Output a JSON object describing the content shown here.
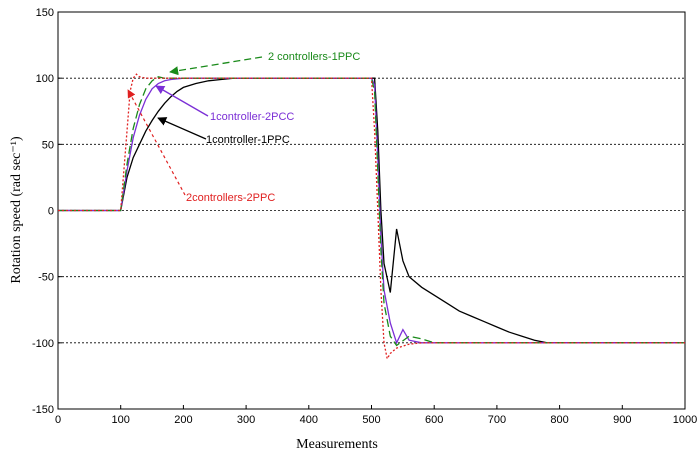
{
  "chart_data": {
    "type": "line",
    "title": "",
    "xlabel": "Measurements",
    "ylabel": "Rotation speed (rad sec⁻¹)",
    "xlim": [
      0,
      1000
    ],
    "ylim": [
      -150,
      150
    ],
    "xticks": [
      0,
      100,
      200,
      300,
      400,
      500,
      600,
      700,
      800,
      900,
      1000
    ],
    "yticks": [
      -150,
      -100,
      -50,
      0,
      50,
      100,
      150
    ],
    "grid": "horizontal dotted",
    "legend": "none (inline arrow annotations)",
    "series": [
      {
        "name": "1controller-1PPC",
        "color": "#000000",
        "style": "solid",
        "points": [
          [
            0,
            0
          ],
          [
            100,
            0
          ],
          [
            110,
            25
          ],
          [
            120,
            40
          ],
          [
            130,
            50
          ],
          [
            140,
            60
          ],
          [
            150,
            68
          ],
          [
            160,
            75
          ],
          [
            170,
            81
          ],
          [
            180,
            86
          ],
          [
            190,
            90
          ],
          [
            200,
            93
          ],
          [
            220,
            96
          ],
          [
            240,
            98
          ],
          [
            260,
            99
          ],
          [
            280,
            100
          ],
          [
            300,
            100
          ],
          [
            400,
            100
          ],
          [
            500,
            100
          ],
          [
            505,
            100
          ],
          [
            510,
            60
          ],
          [
            515,
            0
          ],
          [
            520,
            -40
          ],
          [
            530,
            -62
          ],
          [
            540,
            -14
          ],
          [
            550,
            -38
          ],
          [
            560,
            -50
          ],
          [
            580,
            -58
          ],
          [
            600,
            -64
          ],
          [
            620,
            -70
          ],
          [
            640,
            -76
          ],
          [
            660,
            -80
          ],
          [
            680,
            -84
          ],
          [
            700,
            -88
          ],
          [
            720,
            -92
          ],
          [
            740,
            -95
          ],
          [
            760,
            -98
          ],
          [
            780,
            -100
          ],
          [
            800,
            -100
          ],
          [
            900,
            -100
          ],
          [
            1000,
            -100
          ]
        ]
      },
      {
        "name": "1controller-2PCC",
        "color": "#7b2fd6",
        "style": "solid",
        "points": [
          [
            0,
            0
          ],
          [
            100,
            0
          ],
          [
            110,
            30
          ],
          [
            120,
            55
          ],
          [
            130,
            72
          ],
          [
            140,
            84
          ],
          [
            150,
            92
          ],
          [
            160,
            96
          ],
          [
            170,
            98
          ],
          [
            180,
            99
          ],
          [
            200,
            100
          ],
          [
            300,
            100
          ],
          [
            500,
            100
          ],
          [
            505,
            95
          ],
          [
            510,
            40
          ],
          [
            515,
            -20
          ],
          [
            520,
            -60
          ],
          [
            530,
            -85
          ],
          [
            540,
            -100
          ],
          [
            550,
            -90
          ],
          [
            560,
            -98
          ],
          [
            580,
            -100
          ],
          [
            600,
            -100
          ],
          [
            1000,
            -100
          ]
        ]
      },
      {
        "name": "2 controllers-1PPC",
        "color": "#1a8a1a",
        "style": "dashed",
        "points": [
          [
            0,
            0
          ],
          [
            100,
            0
          ],
          [
            110,
            35
          ],
          [
            120,
            62
          ],
          [
            130,
            80
          ],
          [
            140,
            92
          ],
          [
            150,
            98
          ],
          [
            160,
            101
          ],
          [
            170,
            100
          ],
          [
            200,
            100
          ],
          [
            300,
            100
          ],
          [
            500,
            100
          ],
          [
            505,
            90
          ],
          [
            510,
            30
          ],
          [
            515,
            -30
          ],
          [
            520,
            -70
          ],
          [
            530,
            -95
          ],
          [
            540,
            -102
          ],
          [
            560,
            -95
          ],
          [
            580,
            -97
          ],
          [
            600,
            -100
          ],
          [
            1000,
            -100
          ]
        ]
      },
      {
        "name": "2controllers-2PPC",
        "color": "#e02020",
        "style": "dotted",
        "points": [
          [
            0,
            0
          ],
          [
            100,
            0
          ],
          [
            110,
            60
          ],
          [
            115,
            90
          ],
          [
            120,
            100
          ],
          [
            125,
            103
          ],
          [
            130,
            101
          ],
          [
            140,
            100
          ],
          [
            200,
            100
          ],
          [
            500,
            100
          ],
          [
            505,
            60
          ],
          [
            510,
            0
          ],
          [
            515,
            -60
          ],
          [
            520,
            -100
          ],
          [
            525,
            -112
          ],
          [
            530,
            -108
          ],
          [
            540,
            -104
          ],
          [
            560,
            -101
          ],
          [
            580,
            -100
          ],
          [
            1000,
            -100
          ]
        ]
      }
    ]
  },
  "annotations": {
    "a1": "2 controllers-1PPC",
    "a2": "1controller-2PCC",
    "a3": "1controller-1PPC",
    "a4": "2controllers-2PPC"
  }
}
